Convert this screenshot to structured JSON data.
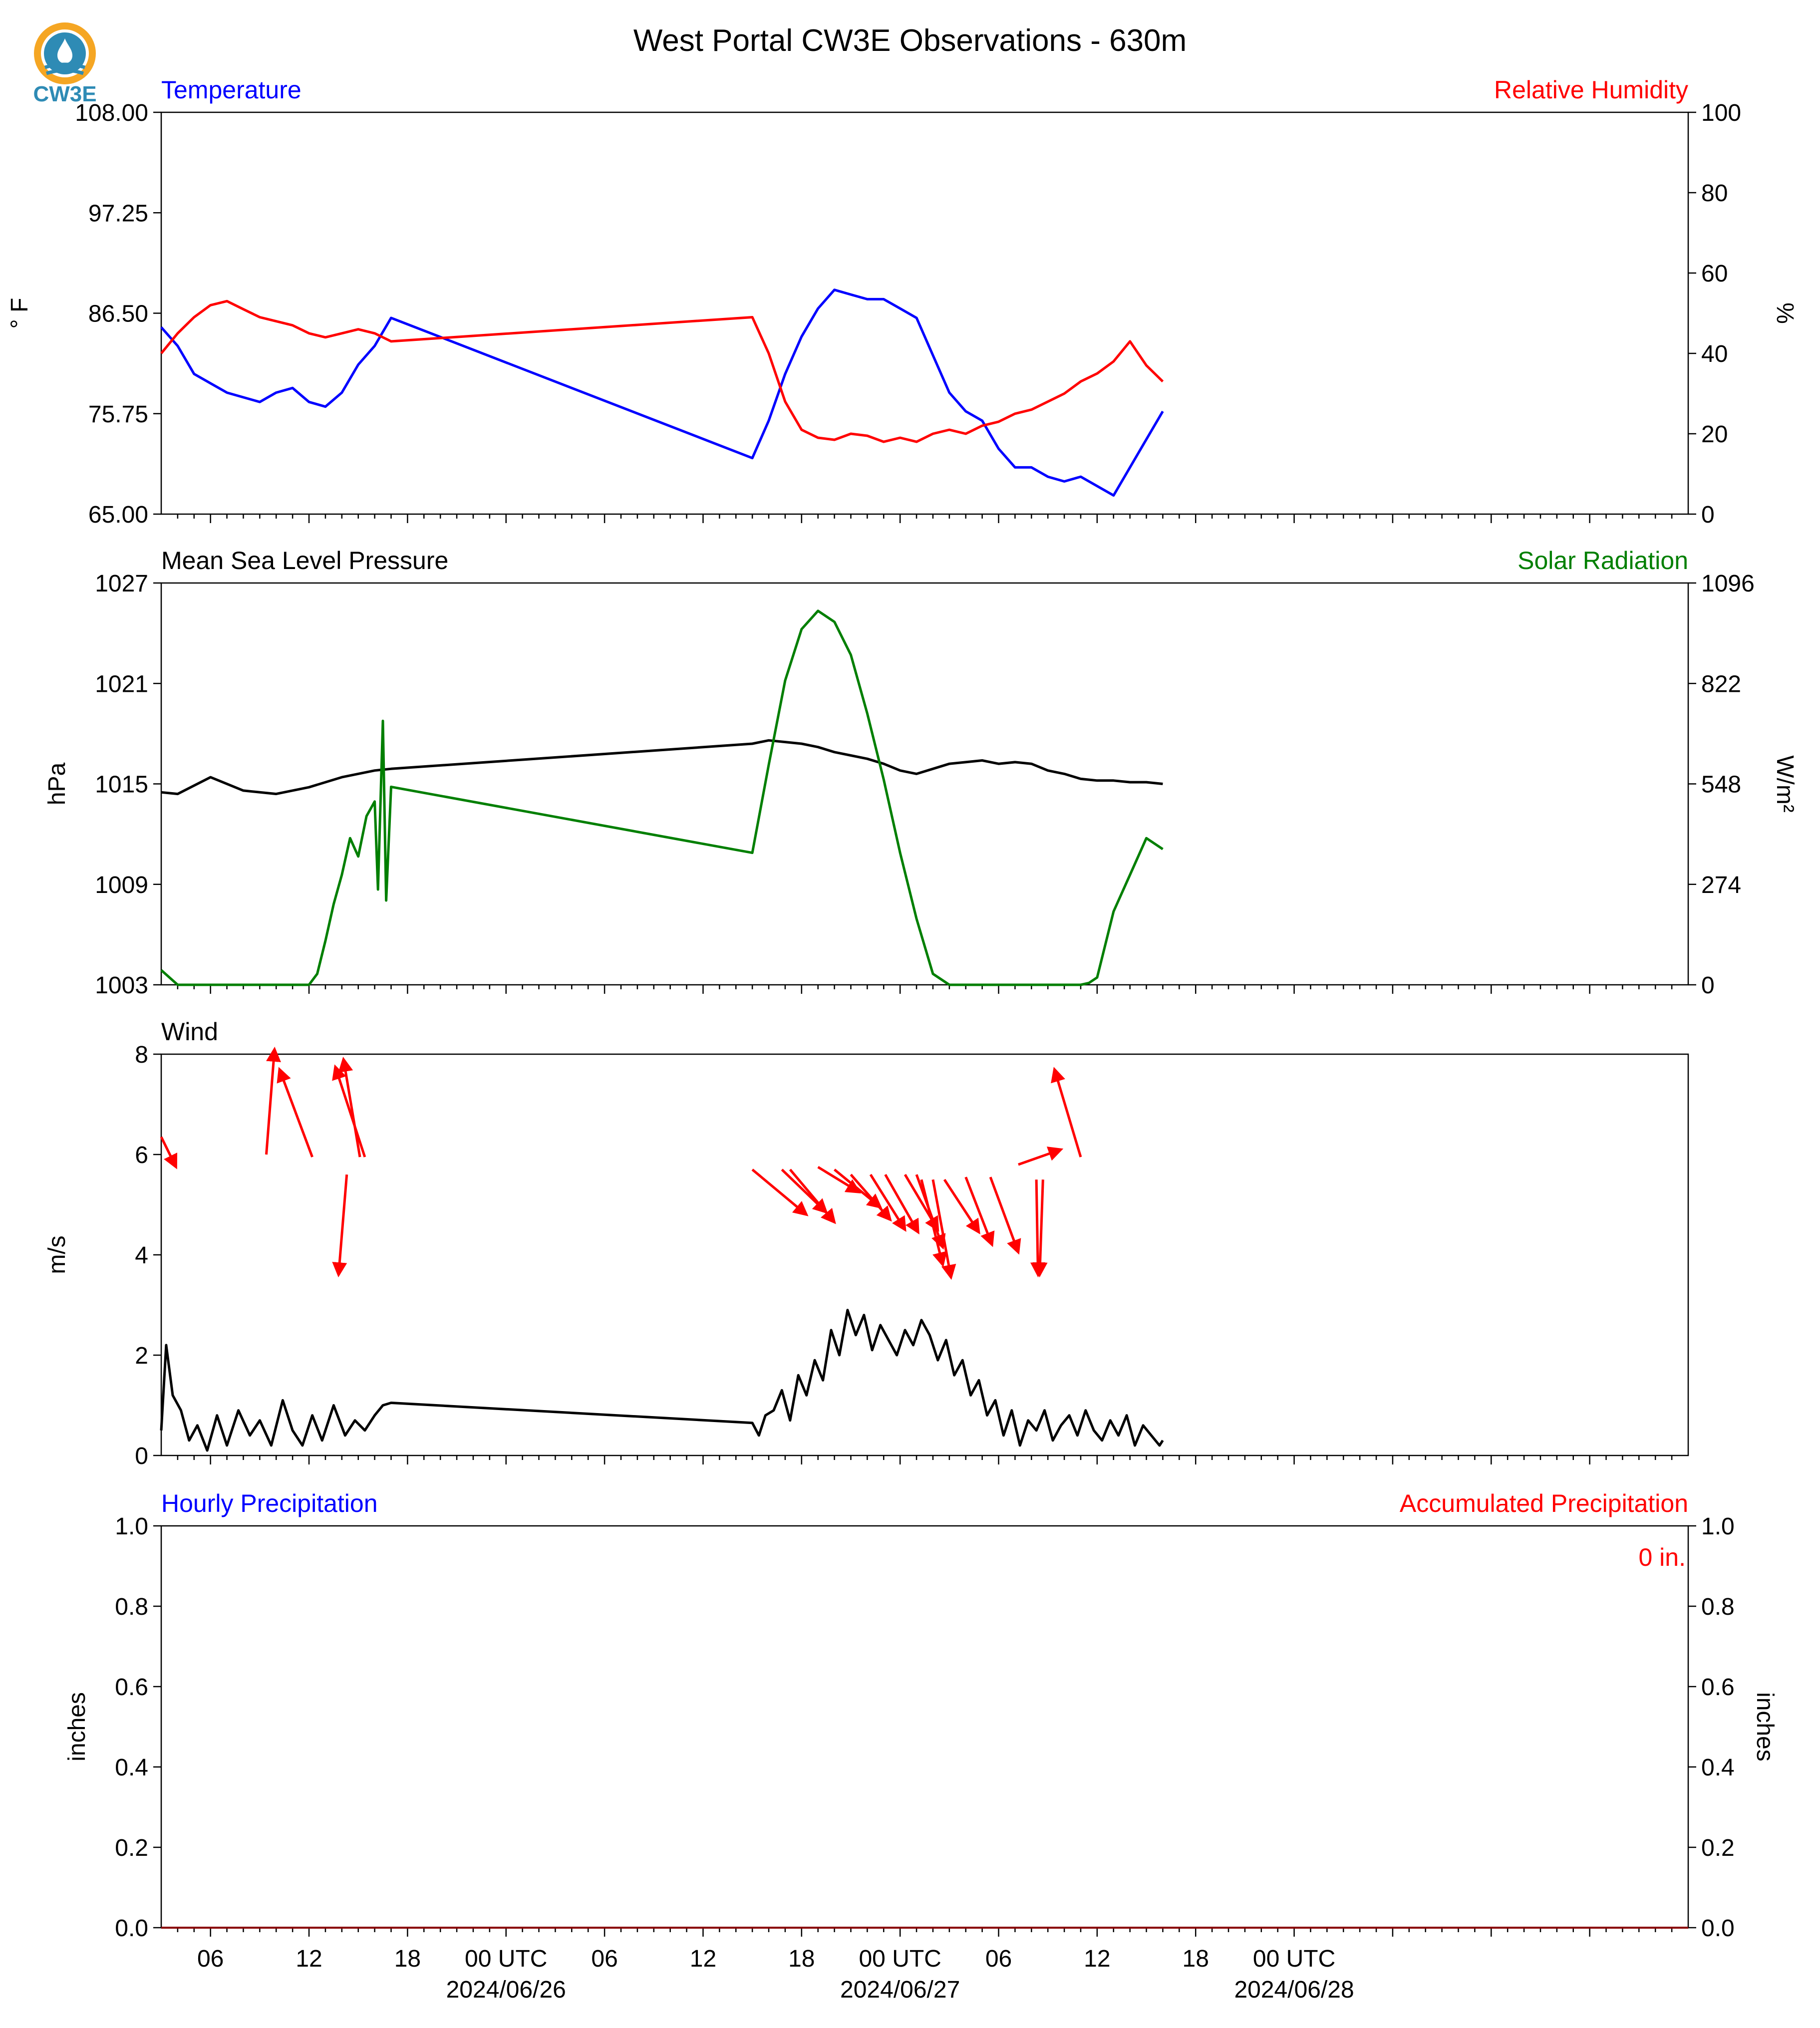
{
  "title": "West Portal CW3E Observations - 630m",
  "logo": {
    "text": "CW3E",
    "icon": "water-drop-logo-icon",
    "colors": [
      "#F5A623",
      "#2E8BB5"
    ]
  },
  "x_axis": {
    "range_hours": [
      -21,
      72
    ],
    "ticks": [
      {
        "h": -18,
        "label": "06",
        "date": ""
      },
      {
        "h": -12,
        "label": "12",
        "date": ""
      },
      {
        "h": -6,
        "label": "18",
        "date": ""
      },
      {
        "h": 0,
        "label": "00 UTC",
        "date": "2024/06/26"
      },
      {
        "h": 6,
        "label": "06",
        "date": ""
      },
      {
        "h": 12,
        "label": "12",
        "date": ""
      },
      {
        "h": 18,
        "label": "18",
        "date": ""
      },
      {
        "h": 24,
        "label": "00 UTC",
        "date": "2024/06/27"
      },
      {
        "h": 30,
        "label": "06",
        "date": ""
      },
      {
        "h": 36,
        "label": "12",
        "date": ""
      },
      {
        "h": 42,
        "label": "18",
        "date": ""
      },
      {
        "h": 48,
        "label": "00 UTC",
        "date": "2024/06/28"
      }
    ]
  },
  "chart_data": [
    {
      "type": "line",
      "panel": "temperature-humidity",
      "left_title": "Temperature",
      "right_title": "Relative Humidity",
      "ylabel_left": "° F",
      "ylabel_right": "%",
      "ylim_left": [
        65,
        108
      ],
      "yticks_left": [
        "65.00",
        "75.75",
        "86.50",
        "97.25",
        "108.00"
      ],
      "ylim_right": [
        0,
        100
      ],
      "yticks_right": [
        "0",
        "20",
        "40",
        "60",
        "80",
        "100"
      ],
      "series": [
        {
          "name": "Temperature",
          "axis": "left",
          "color": "#0000FF",
          "x": [
            -21,
            -20,
            -19,
            -18,
            -17,
            -16,
            -15,
            -14,
            -13,
            -12,
            -11,
            -10,
            -9,
            -8,
            -7,
            15,
            16,
            17,
            18,
            19,
            20,
            21,
            22,
            23,
            24,
            25,
            26,
            27,
            28,
            29,
            30,
            31,
            32,
            33,
            34,
            35,
            36,
            37,
            38,
            39,
            40
          ],
          "y": [
            85,
            83,
            80,
            79,
            78,
            77.5,
            77,
            78,
            78.5,
            77,
            76.5,
            78,
            81,
            83,
            86,
            71,
            75,
            80,
            84,
            87,
            89,
            88.5,
            88,
            88,
            87,
            86,
            82,
            78,
            76,
            75,
            72,
            70,
            70,
            69,
            68.5,
            69,
            68,
            67,
            70,
            73,
            76
          ]
        },
        {
          "name": "Relative Humidity",
          "axis": "right",
          "color": "#FF0000",
          "x": [
            -21,
            -20,
            -19,
            -18,
            -17,
            -16,
            -15,
            -14,
            -13,
            -12,
            -11,
            -10,
            -9,
            -8,
            -7,
            15,
            16,
            17,
            18,
            19,
            20,
            21,
            22,
            23,
            24,
            25,
            26,
            27,
            28,
            29,
            30,
            31,
            32,
            33,
            34,
            35,
            36,
            37,
            38,
            39,
            40
          ],
          "y": [
            40,
            45,
            49,
            52,
            53,
            51,
            49,
            48,
            47,
            45,
            44,
            45,
            46,
            45,
            43,
            49,
            40,
            28,
            21,
            19,
            18.5,
            20,
            19.5,
            18,
            19,
            18,
            20,
            21,
            20,
            22,
            23,
            25,
            26,
            28,
            30,
            33,
            35,
            38,
            43,
            37,
            33
          ]
        }
      ]
    },
    {
      "type": "line",
      "panel": "pressure-solar",
      "left_title": "Mean Sea Level Pressure",
      "right_title": "Solar Radiation",
      "ylabel_left": "hPa",
      "ylabel_right": "W/m²",
      "ylim_left": [
        1003,
        1027
      ],
      "yticks_left": [
        "1003",
        "1009",
        "1015",
        "1021",
        "1027"
      ],
      "ylim_right": [
        0,
        1096
      ],
      "yticks_right": [
        "0",
        "274",
        "548",
        "822",
        "1096"
      ],
      "series": [
        {
          "name": "Mean Sea Level Pressure",
          "axis": "left",
          "color": "#000000",
          "x": [
            -21,
            -20,
            -18,
            -16,
            -14,
            -12,
            -10,
            -8,
            -7,
            15,
            16,
            17,
            18,
            19,
            20,
            21,
            22,
            23,
            24,
            25,
            26,
            27,
            28,
            29,
            30,
            31,
            32,
            33,
            34,
            35,
            36,
            37,
            38,
            39,
            40
          ],
          "y": [
            1014.5,
            1014.4,
            1015.4,
            1014.6,
            1014.4,
            1014.8,
            1015.4,
            1015.8,
            1015.9,
            1017.4,
            1017.6,
            1017.5,
            1017.4,
            1017.2,
            1016.9,
            1016.7,
            1016.5,
            1016.2,
            1015.8,
            1015.6,
            1015.9,
            1016.2,
            1016.3,
            1016.4,
            1016.2,
            1016.3,
            1016.2,
            1015.8,
            1015.6,
            1015.3,
            1015.2,
            1015.2,
            1015.1,
            1015.1,
            1015.0
          ]
        },
        {
          "name": "Solar Radiation",
          "axis": "right",
          "color": "#007F00",
          "x": [
            -21,
            -20,
            -18,
            -16,
            -14,
            -12,
            -11.5,
            -11,
            -10.5,
            -10,
            -9.5,
            -9,
            -8.5,
            -8,
            -7.8,
            -7.5,
            -7.3,
            -7,
            15,
            16,
            17,
            18,
            19,
            20,
            21,
            22,
            23,
            24,
            25,
            26,
            27,
            28,
            29,
            30,
            31,
            32,
            33,
            34,
            35,
            35.5,
            36,
            37,
            38,
            39,
            40
          ],
          "y": [
            40,
            0,
            0,
            0,
            0,
            0,
            30,
            120,
            220,
            300,
            400,
            350,
            460,
            500,
            260,
            720,
            230,
            540,
            360,
            600,
            830,
            970,
            1020,
            990,
            900,
            740,
            560,
            360,
            180,
            30,
            0,
            0,
            0,
            0,
            0,
            0,
            0,
            0,
            0,
            5,
            20,
            200,
            300,
            400,
            370
          ]
        }
      ]
    },
    {
      "type": "line",
      "panel": "wind",
      "left_title": "Wind",
      "ylabel_left": "m/s",
      "ylim_left": [
        0,
        8
      ],
      "yticks_left": [
        "0",
        "2",
        "4",
        "6",
        "8"
      ],
      "series": [
        {
          "name": "Wind",
          "axis": "left",
          "color": "#000000",
          "x": [
            -21,
            -20.7,
            -20.3,
            -19.8,
            -19.3,
            -18.8,
            -18.2,
            -17.6,
            -17,
            -16.3,
            -15.6,
            -15,
            -14.3,
            -13.6,
            -13,
            -12.4,
            -11.8,
            -11.2,
            -10.5,
            -9.8,
            -9.2,
            -8.6,
            -8,
            -7.5,
            -7,
            15,
            15.4,
            15.8,
            16.3,
            16.8,
            17.3,
            17.8,
            18.3,
            18.8,
            19.3,
            19.8,
            20.3,
            20.8,
            21.3,
            21.8,
            22.3,
            22.8,
            23.3,
            23.8,
            24.3,
            24.8,
            25.3,
            25.8,
            26.3,
            26.8,
            27.3,
            27.8,
            28.3,
            28.8,
            29.3,
            29.8,
            30.3,
            30.8,
            31.3,
            31.8,
            32.3,
            32.8,
            33.3,
            33.8,
            34.3,
            34.8,
            35.3,
            35.8,
            36.3,
            36.8,
            37.3,
            37.8,
            38.3,
            38.8,
            39.3,
            39.8,
            40
          ],
          "y": [
            0.5,
            2.2,
            1.2,
            0.9,
            0.3,
            0.6,
            0.1,
            0.8,
            0.2,
            0.9,
            0.4,
            0.7,
            0.2,
            1.1,
            0.5,
            0.2,
            0.8,
            0.3,
            1.0,
            0.4,
            0.7,
            0.5,
            0.8,
            1.0,
            1.05,
            0.65,
            0.4,
            0.8,
            0.9,
            1.3,
            0.7,
            1.6,
            1.2,
            1.9,
            1.5,
            2.5,
            2.0,
            2.9,
            2.4,
            2.8,
            2.1,
            2.6,
            2.3,
            2.0,
            2.5,
            2.2,
            2.7,
            2.4,
            1.9,
            2.3,
            1.6,
            1.9,
            1.2,
            1.5,
            0.8,
            1.1,
            0.4,
            0.9,
            0.2,
            0.7,
            0.5,
            0.9,
            0.3,
            0.6,
            0.8,
            0.4,
            0.9,
            0.5,
            0.3,
            0.7,
            0.4,
            0.8,
            0.2,
            0.6,
            0.4,
            0.2,
            0.3
          ]
        }
      ],
      "arrows": {
        "color": "#FF0000",
        "items": [
          {
            "x": -21,
            "y": 6.35,
            "dx": 0.9,
            "dy": -0.6
          },
          {
            "x": -14.6,
            "y": 6.0,
            "dx": 0.5,
            "dy": 2.1
          },
          {
            "x": -11.8,
            "y": 5.95,
            "dx": -2.0,
            "dy": 1.75
          },
          {
            "x": -8.6,
            "y": 5.95,
            "dx": -1.8,
            "dy": 1.8
          },
          {
            "x": -8.9,
            "y": 5.95,
            "dx": -1.0,
            "dy": 1.95
          },
          {
            "x": -9.7,
            "y": 5.6,
            "dx": -0.5,
            "dy": -2.0
          },
          {
            "x": 15,
            "y": 5.7,
            "dx": 3.3,
            "dy": -0.9
          },
          {
            "x": 16.8,
            "y": 5.7,
            "dx": 2.7,
            "dy": -0.85
          },
          {
            "x": 17.3,
            "y": 5.7,
            "dx": 2.7,
            "dy": -1.05
          },
          {
            "x": 19.0,
            "y": 5.75,
            "dx": 2.5,
            "dy": -0.5
          },
          {
            "x": 20.0,
            "y": 5.7,
            "dx": 2.8,
            "dy": -0.75
          },
          {
            "x": 21.0,
            "y": 5.6,
            "dx": 2.4,
            "dy": -0.9
          },
          {
            "x": 22.2,
            "y": 5.6,
            "dx": 2.1,
            "dy": -1.1
          },
          {
            "x": 23.1,
            "y": 5.6,
            "dx": 2.0,
            "dy": -1.15
          },
          {
            "x": 24.3,
            "y": 5.6,
            "dx": 2.0,
            "dy": -1.1
          },
          {
            "x": 25.0,
            "y": 5.6,
            "dx": 1.6,
            "dy": -1.45
          },
          {
            "x": 25.3,
            "y": 5.5,
            "dx": 1.3,
            "dy": -1.7
          },
          {
            "x": 26.0,
            "y": 5.5,
            "dx": 1.1,
            "dy": -1.95
          },
          {
            "x": 26.7,
            "y": 5.5,
            "dx": 2.1,
            "dy": -1.05
          },
          {
            "x": 28.0,
            "y": 5.55,
            "dx": 1.6,
            "dy": -1.35
          },
          {
            "x": 29.5,
            "y": 5.55,
            "dx": 1.7,
            "dy": -1.5
          },
          {
            "x": 31.2,
            "y": 5.8,
            "dx": 2.6,
            "dy": 0.3
          },
          {
            "x": 32.3,
            "y": 5.5,
            "dx": 0.1,
            "dy": -1.9
          },
          {
            "x": 32.7,
            "y": 5.5,
            "dx": -0.2,
            "dy": -1.9
          },
          {
            "x": 35.0,
            "y": 5.95,
            "dx": -1.6,
            "dy": 1.75
          }
        ]
      }
    },
    {
      "type": "line",
      "panel": "precipitation",
      "left_title": "Hourly Precipitation",
      "right_title": "Accumulated Precipitation",
      "ylabel_left": "inches",
      "ylabel_right": "inches",
      "ylim_left": [
        0,
        1
      ],
      "yticks_left": [
        "0.0",
        "0.2",
        "0.4",
        "0.6",
        "0.8",
        "1.0"
      ],
      "ylim_right": [
        0,
        1
      ],
      "yticks_right": [
        "0.0",
        "0.2",
        "0.4",
        "0.6",
        "0.8",
        "1.0"
      ],
      "annotation": "0 in.",
      "series": [
        {
          "name": "Hourly Precipitation",
          "axis": "left",
          "color": "#0000FF",
          "x": [
            -21,
            72
          ],
          "y": [
            0,
            0
          ]
        },
        {
          "name": "Accumulated Precipitation",
          "axis": "right",
          "color": "#8B0000",
          "x": [
            -21,
            72
          ],
          "y": [
            0,
            0
          ]
        }
      ]
    }
  ]
}
